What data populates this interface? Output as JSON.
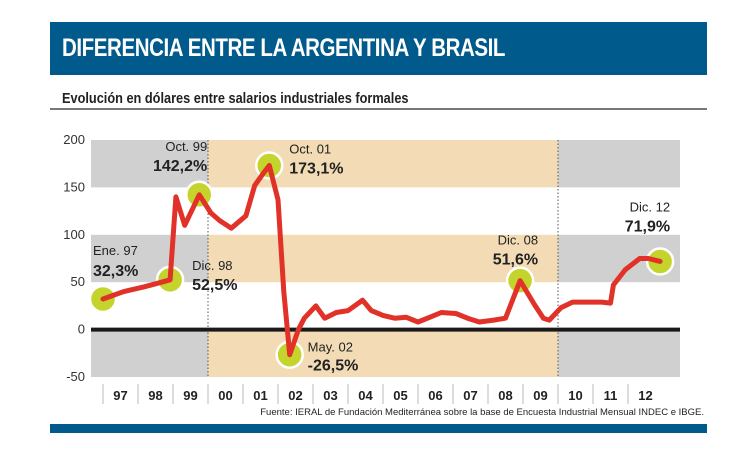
{
  "header": {
    "title": "DIFERENCIA ENTRE LA ARGENTINA Y BRASIL"
  },
  "subtitle": "Evolución en dólares entre salarios industriales formales",
  "source": "Fuente: IERAL de Fundación Mediterránea sobre la base de Encuesta Industrial Mensual INDEC e IBGE.",
  "colors": {
    "header": "#005a8c",
    "line": "#e03228",
    "marker": "#c5d42c",
    "band_gray": "#d0d0d0",
    "band_orange": "#f3dcb5",
    "zero_line": "#1a1a1a"
  },
  "chart_data": {
    "type": "line",
    "ylim": [
      -50,
      200
    ],
    "yticks": [
      "200",
      "150",
      "100",
      "50",
      "0",
      "-50"
    ],
    "ytick_values": [
      200,
      150,
      100,
      50,
      0,
      -50
    ],
    "xtick_labels": [
      "97",
      "98",
      "99",
      "00",
      "01",
      "02",
      "03",
      "04",
      "05",
      "06",
      "07",
      "08",
      "09",
      "10",
      "11",
      "12"
    ],
    "xlim": [
      "1997-01",
      "2013-01"
    ],
    "periods": [
      {
        "from": "1997-01",
        "to": "2000-01",
        "shade": "gray"
      },
      {
        "from": "2000-01",
        "to": "2010-01",
        "shade": "orange"
      },
      {
        "from": "2010-01",
        "to": "2013-01",
        "shade": "gray"
      }
    ],
    "series": [
      {
        "x": [
          "1997-01",
          "1997-08",
          "1998-03",
          "1998-08",
          "1998-12",
          "1999-02",
          "1999-05",
          "1999-10",
          "2000-02",
          "2000-05",
          "2000-09",
          "2001-02",
          "2001-05",
          "2001-08",
          "2001-10",
          "2002-01",
          "2002-03",
          "2002-05",
          "2002-08",
          "2002-10",
          "2003-02",
          "2003-05",
          "2003-09",
          "2004-01",
          "2004-06",
          "2004-09",
          "2005-01",
          "2005-05",
          "2005-09",
          "2006-01",
          "2006-05",
          "2006-09",
          "2007-02",
          "2007-06",
          "2007-10",
          "2008-03",
          "2008-07",
          "2008-12",
          "2009-05",
          "2009-08",
          "2009-10",
          "2010-02",
          "2010-06",
          "2010-12",
          "2011-04",
          "2011-07",
          "2011-08",
          "2011-12",
          "2012-05",
          "2012-08",
          "2012-12"
        ],
        "y": [
          32.3,
          40,
          45,
          49,
          52.5,
          140,
          110,
          142.2,
          123,
          115,
          107,
          120,
          152,
          165,
          173.1,
          137,
          40,
          -26.5,
          0,
          12,
          25,
          12,
          18,
          20,
          31,
          20,
          15,
          12,
          13,
          8,
          13,
          18,
          17,
          12,
          8,
          10,
          12,
          51.6,
          26,
          12,
          10,
          23,
          29,
          29,
          29,
          28,
          47,
          63,
          75,
          75,
          71.9
        ]
      }
    ],
    "annotations": [
      {
        "x": "1997-01",
        "date": "Ene. 97",
        "value": "32,3%"
      },
      {
        "x": "1998-12",
        "date": "Dic. 98",
        "value": "52,5%"
      },
      {
        "x": "1999-10",
        "date": "Oct. 99",
        "value": "142,2%"
      },
      {
        "x": "2001-10",
        "date": "Oct. 01",
        "value": "173,1%"
      },
      {
        "x": "2002-05",
        "date": "May. 02",
        "value": "-26,5%"
      },
      {
        "x": "2008-12",
        "date": "Dic. 08",
        "value": "51,6%"
      },
      {
        "x": "2012-12",
        "date": "Dic. 12",
        "value": "71,9%"
      }
    ]
  }
}
